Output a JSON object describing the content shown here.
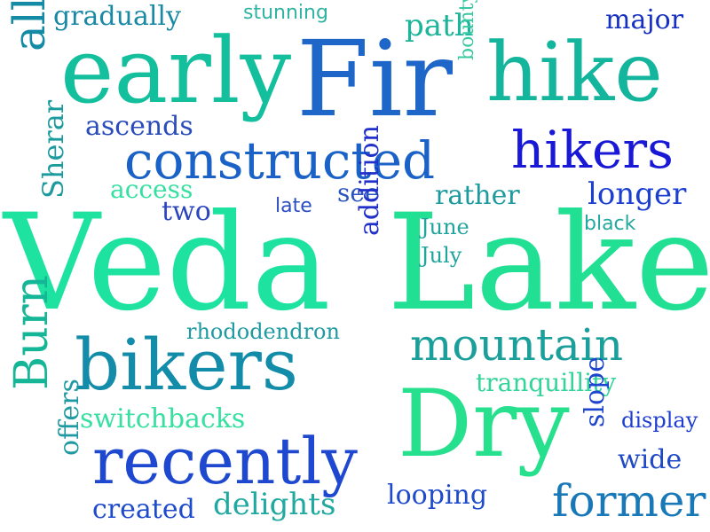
{
  "words": [
    {
      "text": "Veda",
      "color": "#1ee3a0"
    },
    {
      "text": "Lake",
      "color": "#22e093"
    },
    {
      "text": "Fir",
      "color": "#1e66c8"
    },
    {
      "text": "Dry",
      "color": "#27e08e"
    },
    {
      "text": "early",
      "color": "#13bf9d"
    },
    {
      "text": "hike",
      "color": "#13b59d"
    },
    {
      "text": "constructed",
      "color": "#1a62c7"
    },
    {
      "text": "bikers",
      "color": "#128ca9"
    },
    {
      "text": "recently",
      "color": "#1e48cf"
    },
    {
      "text": "mountain",
      "color": "#1a9f9a"
    },
    {
      "text": "hikers",
      "color": "#1818d6"
    },
    {
      "text": "former",
      "color": "#1878b8"
    },
    {
      "text": "allows",
      "color": "#14b697"
    },
    {
      "text": "longer",
      "color": "#158aa5"
    },
    {
      "text": "Burn",
      "color": "#1b3fd1"
    },
    {
      "text": "ascends",
      "color": "#2a4dbb"
    },
    {
      "text": "gradually",
      "color": "#1a89a4"
    },
    {
      "text": "major",
      "color": "#1630c2"
    },
    {
      "text": "path",
      "color": "#1ab59b"
    },
    {
      "text": "stunning",
      "color": "#2fb3a2"
    },
    {
      "text": "bounty",
      "color": "#38c9a0"
    },
    {
      "text": "access",
      "color": "#36e0a0"
    },
    {
      "text": "Sherar",
      "color": "#1c9b9e"
    },
    {
      "text": "two",
      "color": "#2a45bd"
    },
    {
      "text": "late",
      "color": "#2b4fc0"
    },
    {
      "text": "see",
      "color": "#2a55bd"
    },
    {
      "text": "rather",
      "color": "#1c9a9e"
    },
    {
      "text": "June",
      "color": "#20a49c"
    },
    {
      "text": "July",
      "color": "#20a49c"
    },
    {
      "text": "black",
      "color": "#24a8a0"
    },
    {
      "text": "addition",
      "color": "#2030c9"
    },
    {
      "text": "rhododendron",
      "color": "#1f9aa2"
    },
    {
      "text": "tranquillity",
      "color": "#33d49a"
    },
    {
      "text": "switchbacks",
      "color": "#37e0a0"
    },
    {
      "text": "display",
      "color": "#1e3ed0"
    },
    {
      "text": "slope",
      "color": "#1d45ce"
    },
    {
      "text": "wide",
      "color": "#1e48c8"
    },
    {
      "text": "offers",
      "color": "#1f9aa2"
    },
    {
      "text": "created",
      "color": "#1e4bcc"
    },
    {
      "text": "delights",
      "color": "#20a9a0"
    },
    {
      "text": "looping",
      "color": "#1e4bcc"
    }
  ]
}
